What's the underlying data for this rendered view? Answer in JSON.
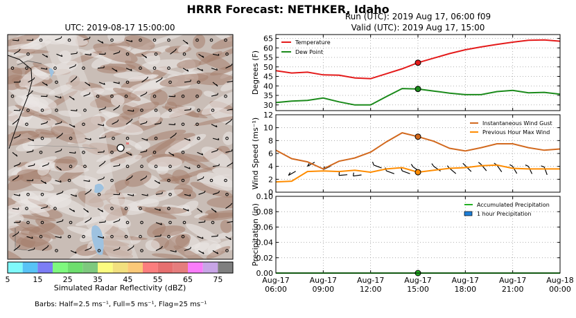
{
  "title": "HRRR Forecast: NETHKER, Idaho",
  "map": {
    "title": "UTC: 2019-08-17 15:00:00",
    "colorbar": {
      "label": "Simulated Radar Reflectivity (dBZ)",
      "ticks": [
        "5",
        "15",
        "25",
        "35",
        "45",
        "55",
        "65",
        "75"
      ],
      "colors": [
        "#7ff9fb",
        "#58c3f6",
        "#7c7df5",
        "#7ef97e",
        "#6ede6e",
        "#7ec97e",
        "#fcfc80",
        "#f2e07e",
        "#fbc978",
        "#fb7e7e",
        "#e66f6f",
        "#e57d7d",
        "#fa7cfa",
        "#c8a5e6",
        "#7f7f7f"
      ]
    },
    "barb_note": "Barbs: Half=2.5 ms⁻¹, Full=5 ms⁻¹, Flag=25 ms⁻¹"
  },
  "run_title": "Run (UTC): 2019 Aug 17, 06:00 f09",
  "valid_title": "Valid (UTC): 2019 Aug 17, 15:00",
  "chart_data": [
    {
      "type": "line",
      "panel": "temperature",
      "ylabel": "Degrees (F)",
      "ylim": [
        27,
        67
      ],
      "yticks": [
        30,
        35,
        40,
        45,
        50,
        55,
        60,
        65
      ],
      "x_hours": [
        6,
        7,
        8,
        9,
        10,
        11,
        12,
        13,
        14,
        15,
        16,
        17,
        18,
        19,
        20,
        21,
        22,
        23,
        24
      ],
      "series": [
        {
          "name": "Temperature",
          "color": "#e41a1a",
          "values": [
            48,
            46.8,
            47.2,
            45.8,
            45.6,
            44.2,
            43.8,
            46.4,
            49,
            52.2,
            54.6,
            57,
            59,
            60.5,
            61.8,
            63,
            64,
            64.2,
            63.5
          ]
        },
        {
          "name": "Dew Point",
          "color": "#1a8a1a",
          "values": [
            31.2,
            32,
            32.4,
            33.6,
            31.6,
            30,
            30,
            34.4,
            38.6,
            38.4,
            37.3,
            36.2,
            35.4,
            35.4,
            37,
            37.6,
            36.4,
            36.6,
            35.6
          ]
        }
      ],
      "legend_position": "upper-left",
      "grid": true,
      "marker_hour": 15
    },
    {
      "type": "line",
      "panel": "wind",
      "ylabel": "Wind Speed (ms⁻¹)",
      "ylim": [
        0,
        12
      ],
      "yticks": [
        0,
        2,
        4,
        6,
        8,
        10,
        12
      ],
      "x_hours": [
        6,
        7,
        8,
        9,
        10,
        11,
        12,
        13,
        14,
        15,
        16,
        17,
        18,
        19,
        20,
        21,
        22,
        23,
        24
      ],
      "series": [
        {
          "name": "Instantaneous Wind Gust",
          "color": "#d2691e",
          "values": [
            6.5,
            5.2,
            4.7,
            3.6,
            4.8,
            5.3,
            6.2,
            7.8,
            9.2,
            8.6,
            7.9,
            6.8,
            6.4,
            6.9,
            7.5,
            7.5,
            6.9,
            6.5,
            6.7
          ]
        },
        {
          "name": "Previous Hour Max Wind",
          "color": "#ff8c00",
          "values": [
            1.6,
            1.7,
            3.2,
            3.3,
            3.2,
            3.4,
            3.1,
            3.6,
            3.8,
            3.1,
            3.4,
            3.7,
            3.8,
            4.1,
            4.2,
            3.7,
            3.6,
            3.6,
            3.6
          ]
        }
      ],
      "legend_position": "upper-right",
      "grid": true,
      "marker_hour": 15
    },
    {
      "type": "line",
      "panel": "precipitation",
      "ylabel": "Precipitation (in)",
      "ylim": [
        0,
        0.1
      ],
      "yticks": [
        "0.00",
        "0.02",
        "0.04",
        "0.06",
        "0.08",
        "0.10"
      ],
      "x_hours": [
        6,
        7,
        8,
        9,
        10,
        11,
        12,
        13,
        14,
        15,
        16,
        17,
        18,
        19,
        20,
        21,
        22,
        23,
        24
      ],
      "series": [
        {
          "name": "Accumulated Precipitation",
          "color": "#22b022",
          "values": [
            0,
            0,
            0,
            0,
            0,
            0,
            0,
            0,
            0,
            0,
            0,
            0,
            0,
            0,
            0,
            0,
            0,
            0,
            0
          ]
        },
        {
          "name": "1 hour Precipitation",
          "color": "#1e7fd8",
          "values": [
            0,
            0,
            0,
            0,
            0,
            0,
            0,
            0,
            0,
            0,
            0,
            0,
            0,
            0,
            0,
            0,
            0,
            0,
            0
          ]
        }
      ],
      "legend_position": "upper-right",
      "grid": true,
      "marker_hour": 15
    }
  ],
  "xticks": [
    {
      "hour": 6,
      "line1": "Aug-17",
      "line2": "06:00"
    },
    {
      "hour": 9,
      "line1": "Aug-17",
      "line2": "09:00"
    },
    {
      "hour": 12,
      "line1": "Aug-17",
      "line2": "12:00"
    },
    {
      "hour": 15,
      "line1": "Aug-17",
      "line2": "15:00"
    },
    {
      "hour": 18,
      "line1": "Aug-17",
      "line2": "18:00"
    },
    {
      "hour": 21,
      "line1": "Aug-17",
      "line2": "21:00"
    },
    {
      "hour": 24,
      "line1": "Aug-18",
      "line2": "00:00"
    }
  ]
}
